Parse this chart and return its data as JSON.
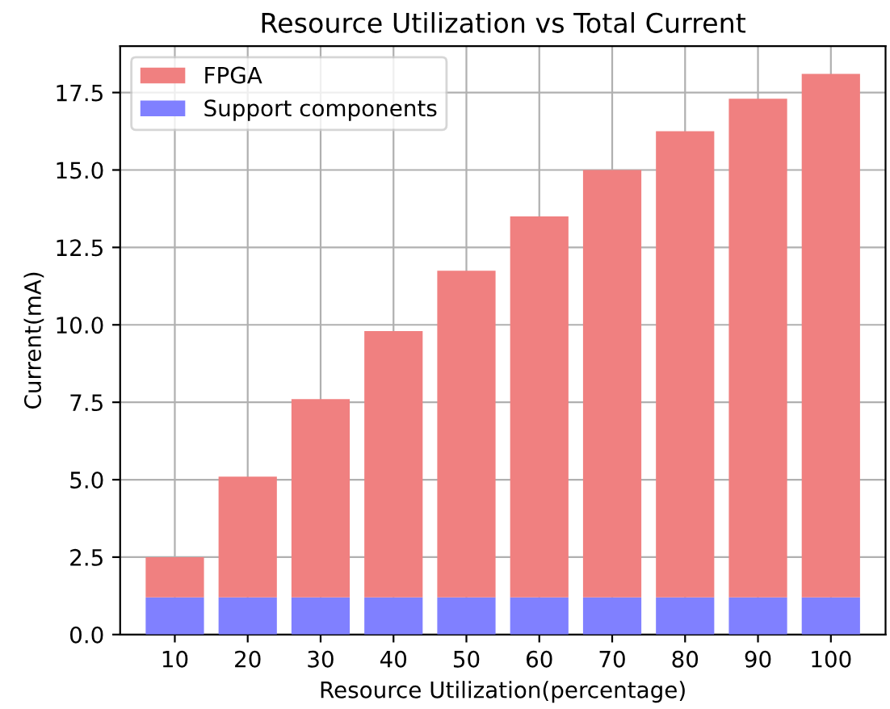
{
  "chart_data": {
    "type": "bar",
    "title": "Resource Utilization vs Total Current",
    "xlabel": "Resource Utilization(percentage)",
    "ylabel": "Current(mA)",
    "categories": [
      "10",
      "20",
      "30",
      "40",
      "50",
      "60",
      "70",
      "80",
      "90",
      "100"
    ],
    "stacked": true,
    "series": [
      {
        "name": "Support components",
        "color": "#8080ff",
        "values": [
          1.2,
          1.2,
          1.2,
          1.2,
          1.2,
          1.2,
          1.2,
          1.2,
          1.2,
          1.2
        ]
      },
      {
        "name": "FPGA",
        "color": "#f08080",
        "values": [
          1.3,
          3.9,
          6.4,
          8.6,
          10.55,
          12.3,
          13.8,
          15.05,
          16.1,
          16.9
        ]
      }
    ],
    "ylim": [
      0,
      19.0
    ],
    "yticks": [
      {
        "value": 0,
        "label": "0.0"
      },
      {
        "value": 2.5,
        "label": "2.5"
      },
      {
        "value": 5,
        "label": "5.0"
      },
      {
        "value": 7.5,
        "label": "7.5"
      },
      {
        "value": 10,
        "label": "10.0"
      },
      {
        "value": 12.5,
        "label": "12.5"
      },
      {
        "value": 15,
        "label": "15.0"
      },
      {
        "value": 17.5,
        "label": "17.5"
      }
    ],
    "grid": true,
    "legend": "top left"
  }
}
